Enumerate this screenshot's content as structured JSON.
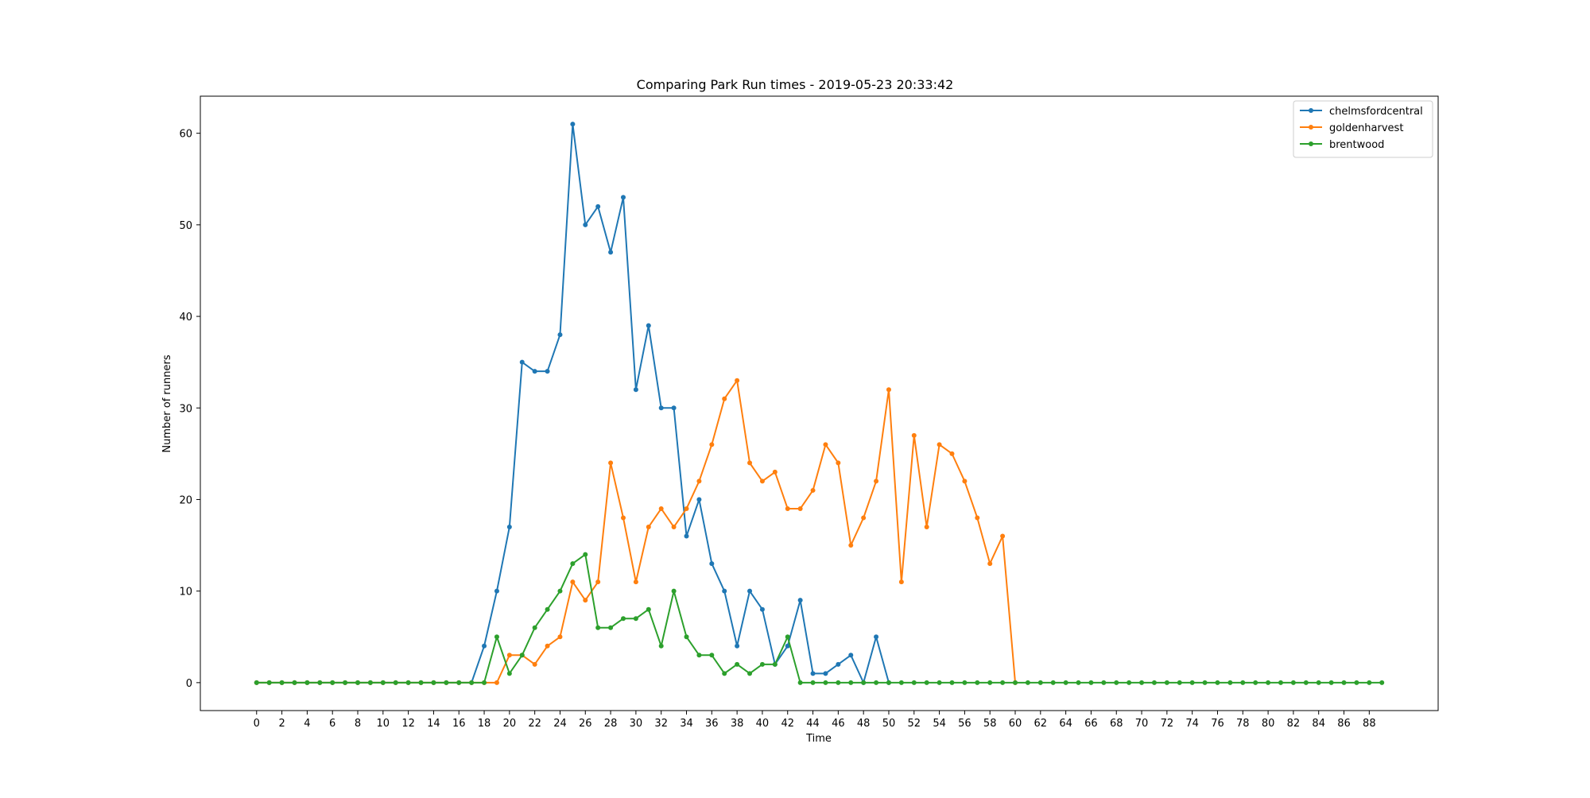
{
  "chart_data": {
    "type": "line",
    "title": "Comparing Park Run times  -  2019-05-23 20:33:42",
    "xlabel": "Time",
    "ylabel": "Number of runners",
    "xlim": [
      -4.45,
      93.45
    ],
    "ylim": [
      -3.05,
      64.05
    ],
    "x_ticks": [
      0,
      2,
      4,
      6,
      8,
      10,
      12,
      14,
      16,
      18,
      20,
      22,
      24,
      26,
      28,
      30,
      32,
      34,
      36,
      38,
      40,
      42,
      44,
      46,
      48,
      50,
      52,
      54,
      56,
      58,
      60,
      62,
      64,
      66,
      68,
      70,
      72,
      74,
      76,
      78,
      80,
      82,
      84,
      86,
      88
    ],
    "y_ticks": [
      0,
      10,
      20,
      30,
      40,
      50,
      60
    ],
    "grid": false,
    "legend_position": "top-right",
    "series": [
      {
        "name": "chelmsfordcentral",
        "color": "#1f77b4",
        "x": [
          0,
          1,
          2,
          3,
          4,
          5,
          6,
          7,
          8,
          9,
          10,
          11,
          12,
          13,
          14,
          15,
          16,
          17,
          18,
          19,
          20,
          21,
          22,
          23,
          24,
          25,
          26,
          27,
          28,
          29,
          30,
          31,
          32,
          33,
          34,
          35,
          36,
          37,
          38,
          39,
          40,
          41,
          42,
          43,
          44,
          45,
          46,
          47,
          48,
          49,
          50
        ],
        "values": [
          0,
          0,
          0,
          0,
          0,
          0,
          0,
          0,
          0,
          0,
          0,
          0,
          0,
          0,
          0,
          0,
          0,
          0,
          4,
          10,
          17,
          35,
          34,
          34,
          38,
          61,
          50,
          52,
          47,
          53,
          32,
          39,
          30,
          30,
          16,
          20,
          13,
          10,
          4,
          10,
          8,
          2,
          4,
          9,
          1,
          1,
          2,
          3,
          0,
          5,
          0
        ]
      },
      {
        "name": "goldenharvest",
        "color": "#ff7f0e",
        "x": [
          0,
          1,
          2,
          3,
          4,
          5,
          6,
          7,
          8,
          9,
          10,
          11,
          12,
          13,
          14,
          15,
          16,
          17,
          18,
          19,
          20,
          21,
          22,
          23,
          24,
          25,
          26,
          27,
          28,
          29,
          30,
          31,
          32,
          33,
          34,
          35,
          36,
          37,
          38,
          39,
          40,
          41,
          42,
          43,
          44,
          45,
          46,
          47,
          48,
          49,
          50,
          51,
          52,
          53,
          54,
          55,
          56,
          57,
          58,
          59,
          60
        ],
        "values": [
          0,
          0,
          0,
          0,
          0,
          0,
          0,
          0,
          0,
          0,
          0,
          0,
          0,
          0,
          0,
          0,
          0,
          0,
          0,
          0,
          3,
          3,
          2,
          4,
          5,
          11,
          9,
          11,
          24,
          18,
          11,
          17,
          19,
          17,
          19,
          22,
          26,
          31,
          33,
          24,
          22,
          23,
          19,
          19,
          21,
          26,
          24,
          15,
          18,
          22,
          32,
          11,
          27,
          17,
          26,
          25,
          22,
          18,
          13,
          16,
          0
        ]
      },
      {
        "name": "brentwood",
        "color": "#2ca02c",
        "x": [
          0,
          1,
          2,
          3,
          4,
          5,
          6,
          7,
          8,
          9,
          10,
          11,
          12,
          13,
          14,
          15,
          16,
          17,
          18,
          19,
          20,
          21,
          22,
          23,
          24,
          25,
          26,
          27,
          28,
          29,
          30,
          31,
          32,
          33,
          34,
          35,
          36,
          37,
          38,
          39,
          40,
          41,
          42,
          43,
          44,
          45,
          46,
          47,
          48,
          49,
          50,
          51,
          52,
          53,
          54,
          55,
          56,
          57,
          58,
          59,
          60,
          61,
          62,
          63,
          64,
          65,
          66,
          67,
          68,
          69,
          70,
          71,
          72,
          73,
          74,
          75,
          76,
          77,
          78,
          79,
          80,
          81,
          82,
          83,
          84,
          85,
          86,
          87,
          88,
          89
        ],
        "values": [
          0,
          0,
          0,
          0,
          0,
          0,
          0,
          0,
          0,
          0,
          0,
          0,
          0,
          0,
          0,
          0,
          0,
          0,
          0,
          5,
          1,
          3,
          6,
          8,
          10,
          13,
          14,
          6,
          6,
          7,
          7,
          8,
          4,
          10,
          5,
          3,
          3,
          1,
          2,
          1,
          2,
          2,
          5,
          0,
          0,
          0,
          0,
          0,
          0,
          0,
          0,
          0,
          0,
          0,
          0,
          0,
          0,
          0,
          0,
          0,
          0,
          0,
          0,
          0,
          0,
          0,
          0,
          0,
          0,
          0,
          0,
          0,
          0,
          0,
          0,
          0,
          0,
          0,
          0,
          0,
          0,
          0,
          0,
          0,
          0,
          0,
          0,
          0,
          0,
          0
        ]
      }
    ]
  }
}
